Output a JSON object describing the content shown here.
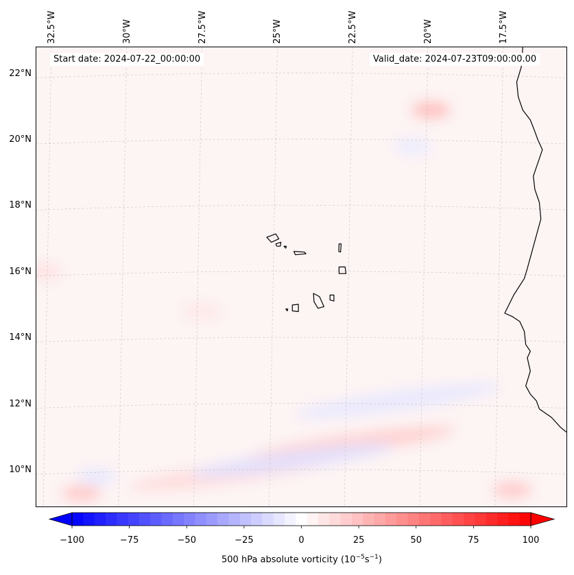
{
  "map": {
    "start_label": "Start date: 2024-07-22_00:00:00",
    "valid_label": "Valid_date: 2024-07-23T09:00:00.00",
    "extent": {
      "lon_min": -33.0,
      "lon_max": -15.4,
      "lat_min": 8.9,
      "lat_max": 22.8
    },
    "lon_ticks": [
      {
        "label": "32.5°W",
        "value": -32.5
      },
      {
        "label": "30°W",
        "value": -30
      },
      {
        "label": "27.5°W",
        "value": -27.5
      },
      {
        "label": "25°W",
        "value": -25
      },
      {
        "label": "22.5°W",
        "value": -22.5
      },
      {
        "label": "20°W",
        "value": -20
      },
      {
        "label": "17.5°W",
        "value": -17.5
      }
    ],
    "lat_ticks": [
      {
        "label": "22°N",
        "value": 22
      },
      {
        "label": "20°N",
        "value": 20
      },
      {
        "label": "18°N",
        "value": 18
      },
      {
        "label": "16°N",
        "value": 16
      },
      {
        "label": "14°N",
        "value": 14
      },
      {
        "label": "12°N",
        "value": 12
      },
      {
        "label": "10°N",
        "value": 10
      }
    ],
    "colors": {
      "positive": "#ff0000",
      "negative": "#0000ff",
      "coast": "#000000",
      "grid": "#b0b0b0"
    },
    "features": [
      {
        "name": "band-north-10n-positive",
        "lon": -22.5,
        "lat": 10.8,
        "value": 20
      },
      {
        "name": "band-south-positive",
        "lon": -26.5,
        "lat": 9.9,
        "value": 15
      },
      {
        "name": "band-south-negative",
        "lon": -24.5,
        "lat": 10.3,
        "value": -12
      },
      {
        "name": "band-12n-negative",
        "lon": -21.0,
        "lat": 12.1,
        "value": -10
      },
      {
        "name": "max-21n",
        "lon": -19.9,
        "lat": 20.9,
        "value": 28
      },
      {
        "name": "max-sw-corner",
        "lon": -31.5,
        "lat": 9.3,
        "value": 22
      },
      {
        "name": "max-se-corner",
        "lon": -17.2,
        "lat": 9.4,
        "value": 22
      },
      {
        "name": "min-20n",
        "lon": -20.5,
        "lat": 19.8,
        "value": -8
      },
      {
        "name": "min-sw-corner",
        "lon": -31.0,
        "lat": 9.8,
        "value": -10
      },
      {
        "name": "max-15n-band",
        "lon": -27.5,
        "lat": 14.8,
        "value": 10
      },
      {
        "name": "max-west-edge",
        "lon": -32.8,
        "lat": 16.0,
        "value": 12
      }
    ],
    "islands": [
      {
        "name": "santo-antao",
        "points": [
          [
            -25.35,
            17.05
          ],
          [
            -25.05,
            17.15
          ],
          [
            -24.95,
            17.0
          ],
          [
            -25.2,
            16.9
          ]
        ]
      },
      {
        "name": "sao-vicente",
        "points": [
          [
            -25.05,
            16.85
          ],
          [
            -24.88,
            16.9
          ],
          [
            -24.9,
            16.78
          ],
          [
            -25.02,
            16.78
          ]
        ]
      },
      {
        "name": "santa-luzia",
        "points": [
          [
            -24.78,
            16.78
          ],
          [
            -24.7,
            16.78
          ],
          [
            -24.72,
            16.72
          ]
        ]
      },
      {
        "name": "sao-nicolau",
        "points": [
          [
            -24.45,
            16.62
          ],
          [
            -24.1,
            16.6
          ],
          [
            -24.05,
            16.55
          ],
          [
            -24.4,
            16.52
          ]
        ]
      },
      {
        "name": "sal",
        "points": [
          [
            -22.95,
            16.85
          ],
          [
            -22.88,
            16.85
          ],
          [
            -22.9,
            16.6
          ],
          [
            -22.96,
            16.62
          ]
        ]
      },
      {
        "name": "boa-vista",
        "points": [
          [
            -22.95,
            16.15
          ],
          [
            -22.75,
            16.15
          ],
          [
            -22.72,
            15.95
          ],
          [
            -22.95,
            15.95
          ]
        ]
      },
      {
        "name": "santiago",
        "points": [
          [
            -23.8,
            15.35
          ],
          [
            -23.6,
            15.25
          ],
          [
            -23.45,
            14.95
          ],
          [
            -23.65,
            14.9
          ],
          [
            -23.78,
            15.1
          ]
        ]
      },
      {
        "name": "maio",
        "points": [
          [
            -23.25,
            15.3
          ],
          [
            -23.12,
            15.3
          ],
          [
            -23.12,
            15.12
          ],
          [
            -23.25,
            15.15
          ]
        ]
      },
      {
        "name": "fogo",
        "points": [
          [
            -24.5,
            15.0
          ],
          [
            -24.3,
            15.02
          ],
          [
            -24.3,
            14.8
          ],
          [
            -24.5,
            14.82
          ]
        ]
      },
      {
        "name": "brava",
        "points": [
          [
            -24.72,
            14.88
          ],
          [
            -24.65,
            14.88
          ],
          [
            -24.67,
            14.82
          ]
        ]
      }
    ],
    "coastline": [
      [
        -16.85,
        22.8
      ],
      [
        -16.9,
        22.2
      ],
      [
        -17.05,
        21.75
      ],
      [
        -17.0,
        21.3
      ],
      [
        -16.85,
        20.9
      ],
      [
        -16.6,
        20.6
      ],
      [
        -16.45,
        20.25
      ],
      [
        -16.35,
        20.0
      ],
      [
        -16.2,
        19.7
      ],
      [
        -16.35,
        19.3
      ],
      [
        -16.5,
        18.9
      ],
      [
        -16.45,
        18.5
      ],
      [
        -16.3,
        18.1
      ],
      [
        -16.25,
        17.6
      ],
      [
        -16.4,
        17.1
      ],
      [
        -16.55,
        16.6
      ],
      [
        -16.7,
        16.1
      ],
      [
        -16.8,
        15.8
      ],
      [
        -17.15,
        15.3
      ],
      [
        -17.45,
        14.75
      ],
      [
        -17.2,
        14.65
      ],
      [
        -16.95,
        14.5
      ],
      [
        -16.8,
        14.2
      ],
      [
        -16.75,
        13.8
      ],
      [
        -16.6,
        13.6
      ],
      [
        -16.7,
        13.4
      ],
      [
        -16.6,
        13.0
      ],
      [
        -16.75,
        12.55
      ],
      [
        -16.6,
        12.3
      ],
      [
        -16.4,
        12.1
      ],
      [
        -16.3,
        11.85
      ],
      [
        -15.9,
        11.6
      ],
      [
        -15.6,
        11.3
      ],
      [
        -15.4,
        11.15
      ]
    ]
  },
  "colorbar": {
    "label_main": "500 hPa absolute vorticity (10",
    "label_sup1": "−5",
    "label_mid": "s",
    "label_sup2": "−1",
    "label_end": ")",
    "min": -100,
    "max": 100,
    "levels": 41,
    "ticks": [
      {
        "label": "−100",
        "value": -100
      },
      {
        "label": "−75",
        "value": -75
      },
      {
        "label": "−50",
        "value": -50
      },
      {
        "label": "−25",
        "value": -25
      },
      {
        "label": "0",
        "value": 0
      },
      {
        "label": "25",
        "value": 25
      },
      {
        "label": "50",
        "value": 50
      },
      {
        "label": "75",
        "value": 75
      },
      {
        "label": "100",
        "value": 100
      }
    ]
  }
}
